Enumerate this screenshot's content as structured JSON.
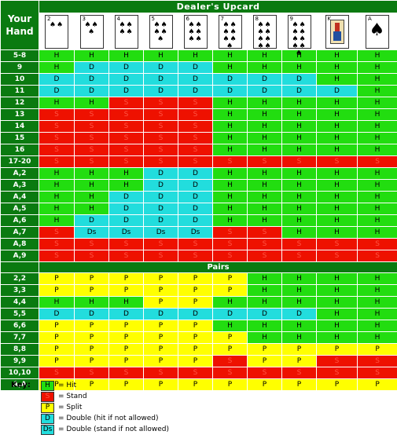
{
  "header": {
    "dealer_upcard": "Dealer's Upcard",
    "your_hand": "Your Hand",
    "pairs": "Pairs"
  },
  "dealer_cards": [
    {
      "rank": "2",
      "pips": "♠♠",
      "icon": "two-of-spades-card-icon"
    },
    {
      "rank": "3",
      "pips": "♠♠♠",
      "icon": "three-of-spades-card-icon"
    },
    {
      "rank": "4",
      "pips": "♠♠♠♠",
      "icon": "four-of-spades-card-icon"
    },
    {
      "rank": "5",
      "pips": "♠♠♠♠♠",
      "icon": "five-of-spades-card-icon"
    },
    {
      "rank": "6",
      "pips": "♠♠♠♠♠♠",
      "icon": "six-of-spades-card-icon"
    },
    {
      "rank": "7",
      "pips": "♠♠♠♠♠♠♠",
      "icon": "seven-of-spades-card-icon"
    },
    {
      "rank": "8",
      "pips": "♠♠♠♠♠♠♠♠",
      "icon": "eight-of-spades-card-icon"
    },
    {
      "rank": "9",
      "pips": "♠♠♠♠♠♠♠♠♠",
      "icon": "nine-of-spades-card-icon"
    },
    {
      "rank": "K",
      "pips": "",
      "icon": "king-of-spades-card-icon"
    },
    {
      "rank": "A",
      "pips": "♠",
      "icon": "ace-of-spades-card-icon"
    }
  ],
  "hard_rows": [
    {
      "hand": "5-8",
      "cells": [
        "H",
        "H",
        "H",
        "H",
        "H",
        "H",
        "H",
        "H",
        "H",
        "H"
      ]
    },
    {
      "hand": "9",
      "cells": [
        "H",
        "D",
        "D",
        "D",
        "D",
        "H",
        "H",
        "H",
        "H",
        "H"
      ]
    },
    {
      "hand": "10",
      "cells": [
        "D",
        "D",
        "D",
        "D",
        "D",
        "D",
        "D",
        "D",
        "H",
        "H"
      ]
    },
    {
      "hand": "11",
      "cells": [
        "D",
        "D",
        "D",
        "D",
        "D",
        "D",
        "D",
        "D",
        "D",
        "H"
      ]
    },
    {
      "hand": "12",
      "cells": [
        "H",
        "H",
        "S",
        "S",
        "S",
        "H",
        "H",
        "H",
        "H",
        "H"
      ]
    },
    {
      "hand": "13",
      "cells": [
        "S",
        "S",
        "S",
        "S",
        "S",
        "H",
        "H",
        "H",
        "H",
        "H"
      ]
    },
    {
      "hand": "14",
      "cells": [
        "S",
        "S",
        "S",
        "S",
        "S",
        "H",
        "H",
        "H",
        "H",
        "H"
      ]
    },
    {
      "hand": "15",
      "cells": [
        "S",
        "S",
        "S",
        "S",
        "S",
        "H",
        "H",
        "H",
        "H",
        "H"
      ]
    },
    {
      "hand": "16",
      "cells": [
        "S",
        "S",
        "S",
        "S",
        "S",
        "H",
        "H",
        "H",
        "H",
        "H"
      ]
    },
    {
      "hand": "17-20",
      "cells": [
        "S",
        "S",
        "S",
        "S",
        "S",
        "S",
        "S",
        "S",
        "S",
        "S"
      ]
    }
  ],
  "soft_rows": [
    {
      "hand": "A,2",
      "cells": [
        "H",
        "H",
        "H",
        "D",
        "D",
        "H",
        "H",
        "H",
        "H",
        "H"
      ]
    },
    {
      "hand": "A,3",
      "cells": [
        "H",
        "H",
        "H",
        "D",
        "D",
        "H",
        "H",
        "H",
        "H",
        "H"
      ]
    },
    {
      "hand": "A,4",
      "cells": [
        "H",
        "H",
        "D",
        "D",
        "D",
        "H",
        "H",
        "H",
        "H",
        "H"
      ]
    },
    {
      "hand": "A,5",
      "cells": [
        "H",
        "H",
        "D",
        "D",
        "D",
        "H",
        "H",
        "H",
        "H",
        "H"
      ]
    },
    {
      "hand": "A,6",
      "cells": [
        "H",
        "D",
        "D",
        "D",
        "D",
        "H",
        "H",
        "H",
        "H",
        "H"
      ]
    },
    {
      "hand": "A,7",
      "cells": [
        "S",
        "Ds",
        "Ds",
        "Ds",
        "Ds",
        "S",
        "S",
        "H",
        "H",
        "H"
      ]
    },
    {
      "hand": "A,8",
      "cells": [
        "S",
        "S",
        "S",
        "S",
        "S",
        "S",
        "S",
        "S",
        "S",
        "S"
      ]
    },
    {
      "hand": "A,9",
      "cells": [
        "S",
        "S",
        "S",
        "S",
        "S",
        "S",
        "S",
        "S",
        "S",
        "S"
      ]
    }
  ],
  "pair_rows": [
    {
      "hand": "2,2",
      "cells": [
        "P",
        "P",
        "P",
        "P",
        "P",
        "P",
        "H",
        "H",
        "H",
        "H"
      ]
    },
    {
      "hand": "3,3",
      "cells": [
        "P",
        "P",
        "P",
        "P",
        "P",
        "P",
        "H",
        "H",
        "H",
        "H"
      ]
    },
    {
      "hand": "4,4",
      "cells": [
        "H",
        "H",
        "H",
        "P",
        "P",
        "H",
        "H",
        "H",
        "H",
        "H"
      ]
    },
    {
      "hand": "5,5",
      "cells": [
        "D",
        "D",
        "D",
        "D",
        "D",
        "D",
        "D",
        "D",
        "H",
        "H"
      ]
    },
    {
      "hand": "6,6",
      "cells": [
        "P",
        "P",
        "P",
        "P",
        "P",
        "H",
        "H",
        "H",
        "H",
        "H"
      ]
    },
    {
      "hand": "7,7",
      "cells": [
        "P",
        "P",
        "P",
        "P",
        "P",
        "P",
        "H",
        "H",
        "H",
        "H"
      ]
    },
    {
      "hand": "8,8",
      "cells": [
        "P",
        "P",
        "P",
        "P",
        "P",
        "P",
        "P",
        "P",
        "P",
        "P"
      ]
    },
    {
      "hand": "9,9",
      "cells": [
        "P",
        "P",
        "P",
        "P",
        "P",
        "S",
        "P",
        "P",
        "S",
        "S"
      ]
    },
    {
      "hand": "10,10",
      "cells": [
        "S",
        "S",
        "S",
        "S",
        "S",
        "S",
        "S",
        "S",
        "S",
        "S"
      ]
    },
    {
      "hand": "A,A",
      "cells": [
        "P",
        "P",
        "P",
        "P",
        "P",
        "P",
        "P",
        "P",
        "P",
        "P"
      ]
    }
  ],
  "key": {
    "title": "Key:",
    "items": [
      {
        "code": "H",
        "text": "= Hit"
      },
      {
        "code": "S",
        "text": "= Stand"
      },
      {
        "code": "P",
        "text": "= Split"
      },
      {
        "code": "D",
        "text": "= Double (hit if not allowed)"
      },
      {
        "code": "Ds",
        "text": "= Double (stand if not allowed)"
      }
    ]
  },
  "colors": {
    "header_green": "#0a7a10",
    "hit_green": "#22dd10",
    "stand_red": "#ee1100",
    "split_yellow": "#ffff00",
    "double_cyan": "#22dddd"
  }
}
